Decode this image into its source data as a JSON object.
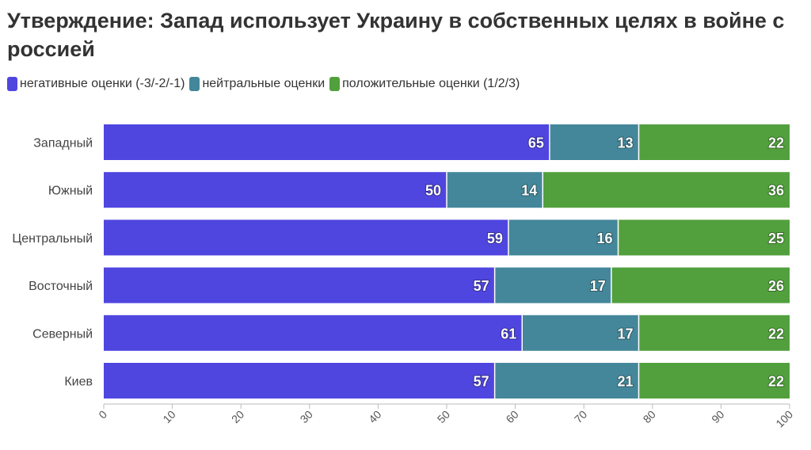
{
  "chart_data": {
    "type": "bar",
    "orientation": "horizontal",
    "stacked": true,
    "title": "Утверждение: Запад использует Украину в собственных целях в войне с россией",
    "categories": [
      "Западный",
      "Южный",
      "Центральный",
      "Восточный",
      "Северный",
      "Киев"
    ],
    "series": [
      {
        "name": "негативные оценки (-3/-2/-1)",
        "color": "#4F46E0",
        "values": [
          65,
          50,
          59,
          57,
          61,
          57
        ]
      },
      {
        "name": "нейтральные оценки",
        "color": "#44879A",
        "values": [
          13,
          14,
          16,
          17,
          17,
          21
        ]
      },
      {
        "name": "положительные оценки (1/2/3)",
        "color": "#52A03D",
        "values": [
          22,
          36,
          25,
          26,
          22,
          22
        ]
      }
    ],
    "xlim": [
      0,
      100
    ],
    "xticks": [
      "0",
      "10",
      "20",
      "30",
      "40",
      "50",
      "60",
      "70",
      "80",
      "90",
      "100"
    ],
    "grid": false,
    "legend_position": "top-left"
  }
}
